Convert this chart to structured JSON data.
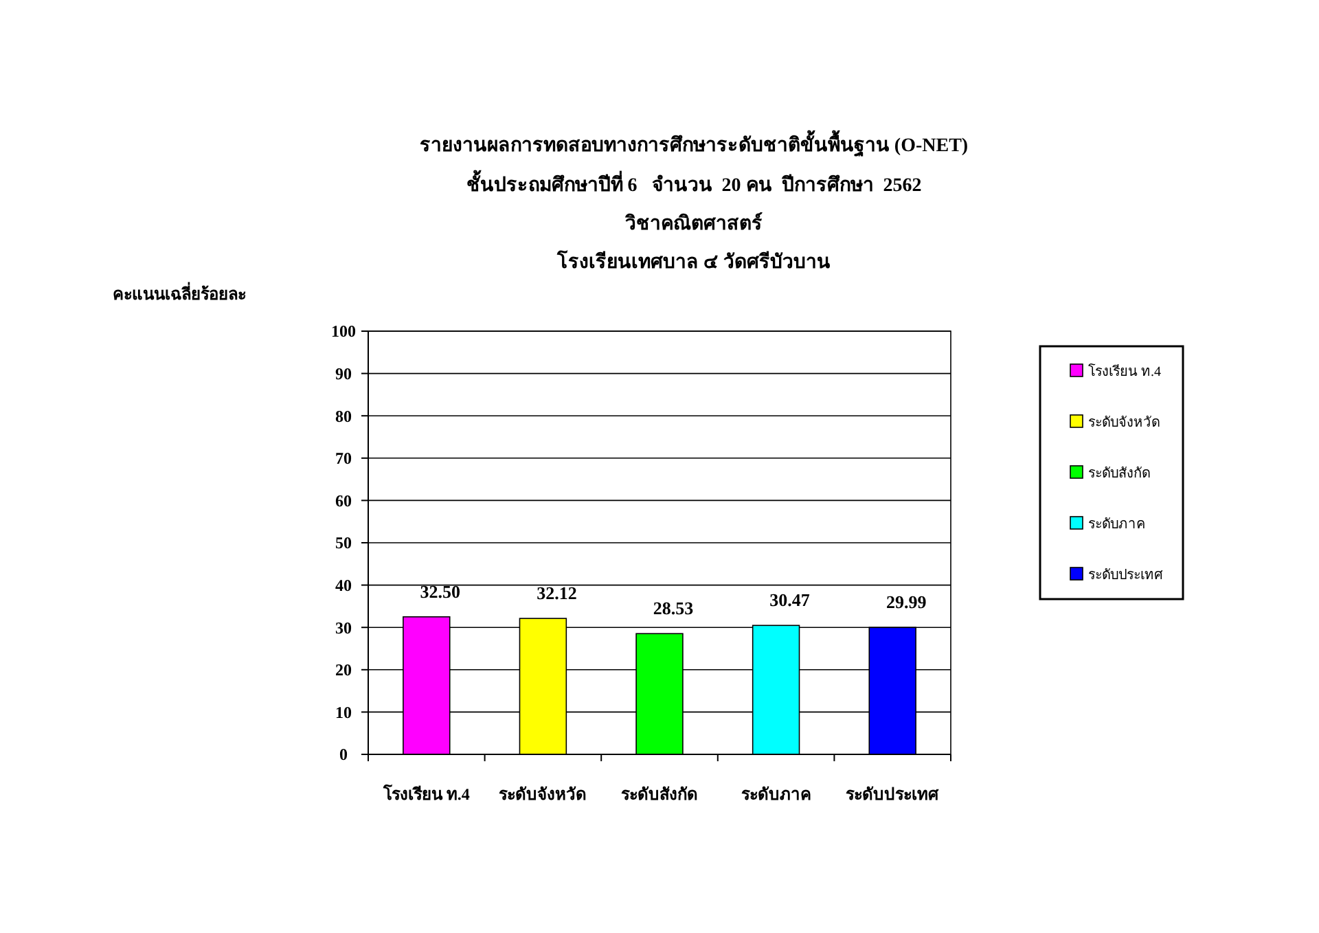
{
  "chart_data": {
    "type": "bar",
    "title": "รายงานผลการทดสอบทางการศึกษาระดับชาติขั้นพื้นฐาน (O-NET)",
    "subtitle": "ชั้นประถมศึกษาปีที่ 6   จำนวน  20 คน  ปีการศึกษา  2562\nวิชาคณิตศาสตร์\nโรงเรียนเทศบาล ๔ วัดศรีบัวบาน",
    "annotations": [
      "คะแนนเฉลี่ยร้อยละ"
    ],
    "categories": [
      "โรงเรียน ท.4",
      "ระดับจังหวัด",
      "ระดับสังกัด",
      "ระดับภาค",
      "ระดับประเทศ"
    ],
    "series": [
      {
        "name": "โรงเรียน ท.4",
        "color": "#ff00ff",
        "values": [
          32.5,
          null,
          null,
          null,
          null
        ],
        "value_labels": [
          "32.50",
          null,
          null,
          null,
          null
        ]
      },
      {
        "name": "ระดับจังหวัด",
        "color": "#ffff00",
        "values": [
          null,
          32.12,
          null,
          null,
          null
        ],
        "value_labels": [
          null,
          "32.12",
          null,
          null,
          null
        ]
      },
      {
        "name": "ระดับสังกัด",
        "color": "#00ff00",
        "values": [
          null,
          null,
          28.53,
          null,
          null
        ],
        "value_labels": [
          null,
          null,
          "28.53",
          null,
          null
        ]
      },
      {
        "name": "ระดับภาค",
        "color": "#00ffff",
        "values": [
          null,
          null,
          null,
          30.47,
          null
        ],
        "value_labels": [
          null,
          null,
          null,
          "30.47",
          null
        ]
      },
      {
        "name": "ระดับประเทศ",
        "color": "#0000ff",
        "values": [
          null,
          null,
          null,
          null,
          29.99
        ],
        "value_labels": [
          null,
          null,
          null,
          null,
          "29.99"
        ]
      }
    ],
    "stacked": true,
    "ylim": [
      0,
      100
    ],
    "yticks": [
      0,
      10,
      20,
      30,
      40,
      50,
      60,
      70,
      80,
      90,
      100
    ],
    "grid": "y",
    "legend": "right"
  }
}
